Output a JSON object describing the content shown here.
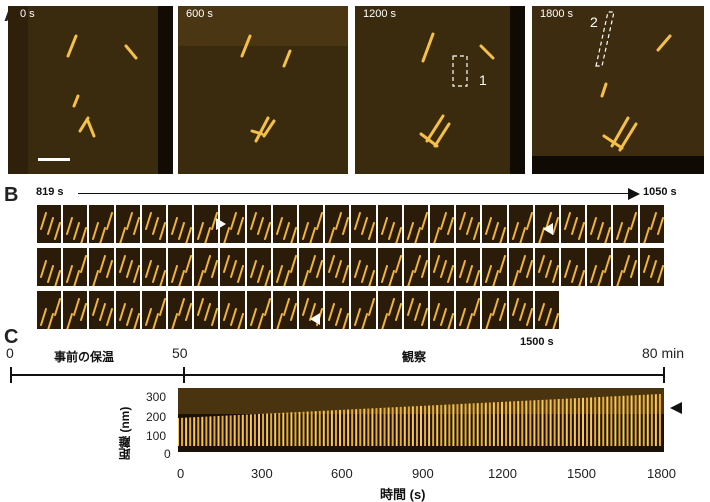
{
  "panelA": {
    "letter": "A",
    "frames": [
      {
        "time": "0 s"
      },
      {
        "time": "600 s"
      },
      {
        "time": "1200 s"
      },
      {
        "time": "1800 s"
      }
    ],
    "roi_labels": [
      "1",
      "2"
    ]
  },
  "panelB": {
    "letter": "B",
    "start": "819 s",
    "end": "1050 s",
    "final": "1500 s",
    "rows": [
      24,
      24,
      20
    ]
  },
  "panelC": {
    "letter": "C",
    "timeline": {
      "ticks": [
        "0",
        "50",
        "80 min"
      ],
      "phase1": "事前の保温",
      "phase2": "観察"
    },
    "kymograph": {
      "ylabel": "距離 (nm)",
      "xlabel": "時間 (s)",
      "yticks": [
        "300",
        "200",
        "100",
        "0"
      ],
      "xticks": [
        "0",
        "300",
        "600",
        "900",
        "1200",
        "1500",
        "1800"
      ]
    }
  },
  "chart_data": {
    "type": "heatmap",
    "xlabel": "時間 (s)",
    "ylabel": "距離 (nm)",
    "xlim": [
      0,
      1800
    ],
    "ylim": [
      0,
      350
    ],
    "xticks": [
      0,
      300,
      600,
      900,
      1200,
      1500,
      1800
    ],
    "yticks": [
      0,
      100,
      200,
      300
    ],
    "colors": {
      "bright": "#f2b23a",
      "dark": "#1a1208"
    }
  }
}
